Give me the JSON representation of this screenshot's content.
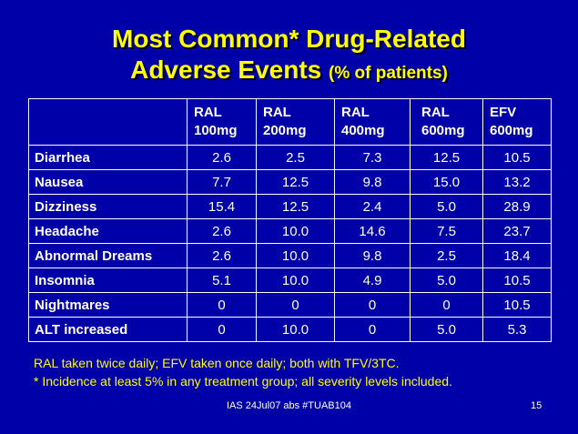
{
  "title": {
    "line1": "Most Common* Drug-Related",
    "line2": "Adverse Events",
    "line2_sub": "(% of patients)"
  },
  "table": {
    "headers": [
      {
        "l1": "RAL",
        "l2": "100mg"
      },
      {
        "l1": "RAL",
        "l2": "200mg"
      },
      {
        "l1": "RAL",
        "l2": "400mg"
      },
      {
        "l1": "RAL",
        "l2": "600mg"
      },
      {
        "l1": "EFV",
        "l2": "600mg"
      }
    ],
    "rows": [
      {
        "label": "Diarrhea",
        "values": [
          "2.6",
          "2.5",
          "7.3",
          "12.5",
          "10.5"
        ]
      },
      {
        "label": "Nausea",
        "values": [
          "7.7",
          "12.5",
          "9.8",
          "15.0",
          "13.2"
        ]
      },
      {
        "label": "Dizziness",
        "values": [
          "15.4",
          "12.5",
          "2.4",
          "5.0",
          "28.9"
        ]
      },
      {
        "label": "Headache",
        "values": [
          "2.6",
          "10.0",
          "14.6",
          "7.5",
          "23.7"
        ]
      },
      {
        "label": "Abnormal Dreams",
        "values": [
          "2.6",
          "10.0",
          "9.8",
          "2.5",
          "18.4"
        ]
      },
      {
        "label": "Insomnia",
        "values": [
          "5.1",
          "10.0",
          "4.9",
          "5.0",
          "10.5"
        ]
      },
      {
        "label": "Nightmares",
        "values": [
          "0",
          "0",
          "0",
          "0",
          "10.5"
        ]
      },
      {
        "label": "ALT increased",
        "values": [
          "0",
          "10.0",
          "0",
          "5.0",
          "5.3"
        ]
      }
    ]
  },
  "notes": {
    "line1": "RAL taken twice daily; EFV taken once daily; both with TFV/3TC.",
    "line2": "* Incidence at least 5% in any treatment group; all severity levels included."
  },
  "footer": {
    "citation": "IAS 24Jul07 abs #TUAB104",
    "page_number": "15"
  },
  "colors": {
    "background": "#0000a8",
    "title": "#ffff00",
    "notes": "#ffff00",
    "table_text": "#ffffff"
  }
}
